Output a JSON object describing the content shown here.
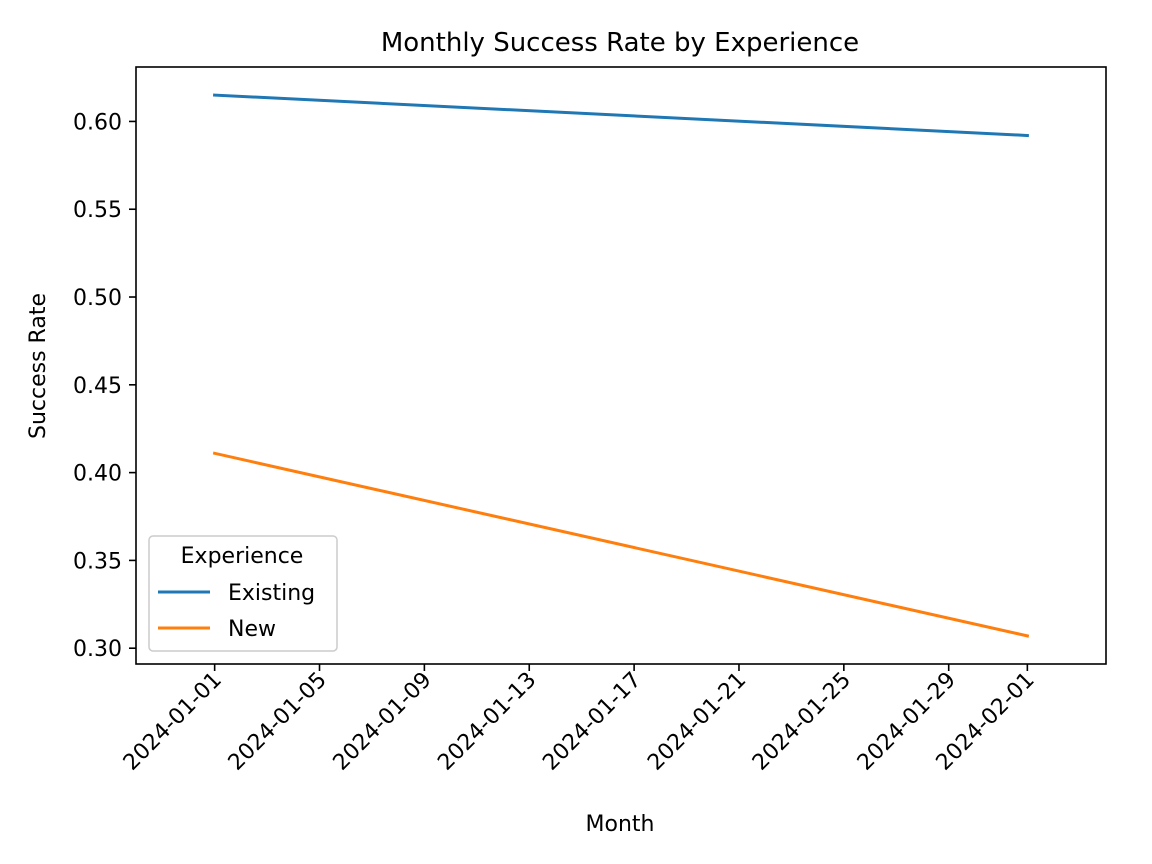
{
  "chart_data": {
    "type": "line",
    "title": "Monthly Success Rate by Experience",
    "xlabel": "Month",
    "ylabel": "Success Rate",
    "x": [
      "2024-01-01",
      "2024-02-01"
    ],
    "series": [
      {
        "name": "Existing",
        "color": "#1f77b4",
        "values": [
          0.615,
          0.592
        ]
      },
      {
        "name": "New",
        "color": "#ff7f0e",
        "values": [
          0.411,
          0.307
        ]
      }
    ],
    "xlim": [
      "2023-12-29",
      "2024-02-04"
    ],
    "ylim": [
      0.291,
      0.631
    ],
    "x_tick_labels": [
      "2024-01-01",
      "2024-01-05",
      "2024-01-09",
      "2024-01-13",
      "2024-01-17",
      "2024-01-21",
      "2024-01-25",
      "2024-01-29",
      "2024-02-01"
    ],
    "y_tick_values": [
      0.3,
      0.35,
      0.4,
      0.45,
      0.5,
      0.55,
      0.6
    ],
    "y_tick_labels": [
      "0.30",
      "0.35",
      "0.40",
      "0.45",
      "0.50",
      "0.55",
      "0.60"
    ],
    "legend": {
      "title": "Experience",
      "position": "lower-left"
    },
    "grid": false
  }
}
